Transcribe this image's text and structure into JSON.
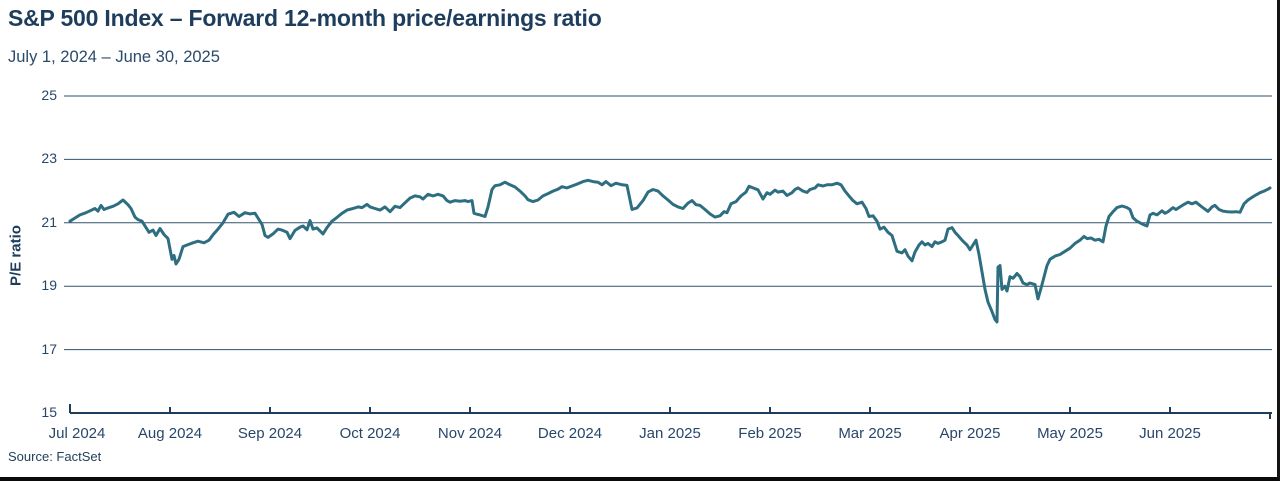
{
  "palette": {
    "line_teal": "#2e6e81",
    "text_navy": "#1e3d5c",
    "grid_navy": "#33526f",
    "axis_navy": "#1e3d5c"
  },
  "chart_data": {
    "type": "line",
    "title": "S&P 500 Index – Forward 12-month price/earnings ratio",
    "subtitle": "July 1, 2024 – June 30, 2025",
    "ylabel": "P/E ratio",
    "source": "Source: FactSet",
    "ylim": [
      15,
      25
    ],
    "y_ticks": [
      15,
      17,
      19,
      21,
      23,
      25
    ],
    "x_tick_labels": [
      "Jul 2024",
      "Aug 2024",
      "Sep 2024",
      "Oct 2024",
      "Nov 2024",
      "Dec 2024",
      "Jan 2025",
      "Feb 2025",
      "Mar 2025",
      "Apr 2025",
      "May 2025",
      "Jun 2025"
    ],
    "x_unit": "months since 2024-07-01 (0 = Jul 1 2024, 12 = Jun 30 2025)",
    "grid": "horizontal gridlines only",
    "legend": "none",
    "series": [
      {
        "name": "S&P 500 forward 12-month P/E ratio",
        "color": "#2e6e81",
        "points": [
          [
            0.0,
            21.05
          ],
          [
            0.05,
            21.15
          ],
          [
            0.1,
            21.25
          ],
          [
            0.16,
            21.32
          ],
          [
            0.2,
            21.38
          ],
          [
            0.25,
            21.45
          ],
          [
            0.28,
            21.37
          ],
          [
            0.31,
            21.55
          ],
          [
            0.34,
            21.42
          ],
          [
            0.38,
            21.47
          ],
          [
            0.43,
            21.52
          ],
          [
            0.48,
            21.6
          ],
          [
            0.53,
            21.72
          ],
          [
            0.58,
            21.57
          ],
          [
            0.61,
            21.45
          ],
          [
            0.65,
            21.18
          ],
          [
            0.68,
            21.1
          ],
          [
            0.72,
            21.05
          ],
          [
            0.76,
            20.85
          ],
          [
            0.79,
            20.7
          ],
          [
            0.83,
            20.77
          ],
          [
            0.86,
            20.6
          ],
          [
            0.9,
            20.82
          ],
          [
            0.94,
            20.63
          ],
          [
            0.98,
            20.5
          ],
          [
            1.02,
            19.85
          ],
          [
            1.04,
            19.97
          ],
          [
            1.06,
            19.7
          ],
          [
            1.09,
            19.85
          ],
          [
            1.13,
            20.25
          ],
          [
            1.17,
            20.3
          ],
          [
            1.23,
            20.37
          ],
          [
            1.28,
            20.42
          ],
          [
            1.34,
            20.37
          ],
          [
            1.39,
            20.45
          ],
          [
            1.43,
            20.62
          ],
          [
            1.48,
            20.8
          ],
          [
            1.53,
            21.0
          ],
          [
            1.58,
            21.27
          ],
          [
            1.64,
            21.33
          ],
          [
            1.69,
            21.2
          ],
          [
            1.75,
            21.32
          ],
          [
            1.8,
            21.28
          ],
          [
            1.85,
            21.3
          ],
          [
            1.88,
            21.15
          ],
          [
            1.92,
            20.95
          ],
          [
            1.95,
            20.6
          ],
          [
            1.98,
            20.54
          ],
          [
            2.03,
            20.65
          ],
          [
            2.08,
            20.8
          ],
          [
            2.12,
            20.77
          ],
          [
            2.17,
            20.7
          ],
          [
            2.2,
            20.5
          ],
          [
            2.25,
            20.76
          ],
          [
            2.3,
            20.86
          ],
          [
            2.33,
            20.9
          ],
          [
            2.37,
            20.78
          ],
          [
            2.4,
            21.07
          ],
          [
            2.43,
            20.8
          ],
          [
            2.47,
            20.84
          ],
          [
            2.53,
            20.65
          ],
          [
            2.57,
            20.85
          ],
          [
            2.62,
            21.05
          ],
          [
            2.67,
            21.17
          ],
          [
            2.72,
            21.3
          ],
          [
            2.77,
            21.4
          ],
          [
            2.83,
            21.45
          ],
          [
            2.88,
            21.5
          ],
          [
            2.92,
            21.48
          ],
          [
            2.97,
            21.58
          ],
          [
            3.0,
            21.5
          ],
          [
            3.05,
            21.45
          ],
          [
            3.1,
            21.4
          ],
          [
            3.15,
            21.5
          ],
          [
            3.2,
            21.35
          ],
          [
            3.25,
            21.52
          ],
          [
            3.3,
            21.48
          ],
          [
            3.35,
            21.63
          ],
          [
            3.4,
            21.78
          ],
          [
            3.45,
            21.85
          ],
          [
            3.5,
            21.82
          ],
          [
            3.53,
            21.75
          ],
          [
            3.58,
            21.9
          ],
          [
            3.63,
            21.85
          ],
          [
            3.68,
            21.9
          ],
          [
            3.73,
            21.85
          ],
          [
            3.77,
            21.7
          ],
          [
            3.8,
            21.65
          ],
          [
            3.85,
            21.7
          ],
          [
            3.9,
            21.68
          ],
          [
            3.95,
            21.7
          ],
          [
            3.98,
            21.67
          ],
          [
            4.02,
            21.7
          ],
          [
            4.04,
            21.3
          ],
          [
            4.07,
            21.27
          ],
          [
            4.1,
            21.25
          ],
          [
            4.15,
            21.2
          ],
          [
            4.18,
            21.5
          ],
          [
            4.22,
            22.05
          ],
          [
            4.25,
            22.17
          ],
          [
            4.3,
            22.2
          ],
          [
            4.35,
            22.28
          ],
          [
            4.4,
            22.2
          ],
          [
            4.45,
            22.13
          ],
          [
            4.5,
            22.0
          ],
          [
            4.55,
            21.85
          ],
          [
            4.58,
            21.73
          ],
          [
            4.63,
            21.67
          ],
          [
            4.68,
            21.72
          ],
          [
            4.73,
            21.85
          ],
          [
            4.78,
            21.92
          ],
          [
            4.83,
            22.0
          ],
          [
            4.88,
            22.06
          ],
          [
            4.92,
            22.14
          ],
          [
            4.97,
            22.1
          ],
          [
            5.02,
            22.16
          ],
          [
            5.07,
            22.22
          ],
          [
            5.13,
            22.3
          ],
          [
            5.18,
            22.34
          ],
          [
            5.23,
            22.3
          ],
          [
            5.28,
            22.28
          ],
          [
            5.32,
            22.2
          ],
          [
            5.36,
            22.3
          ],
          [
            5.41,
            22.17
          ],
          [
            5.46,
            22.25
          ],
          [
            5.52,
            22.2
          ],
          [
            5.57,
            22.18
          ],
          [
            5.62,
            21.42
          ],
          [
            5.67,
            21.47
          ],
          [
            5.73,
            21.7
          ],
          [
            5.78,
            21.97
          ],
          [
            5.83,
            22.05
          ],
          [
            5.88,
            22.0
          ],
          [
            5.93,
            21.85
          ],
          [
            5.98,
            21.72
          ],
          [
            6.03,
            21.58
          ],
          [
            6.08,
            21.5
          ],
          [
            6.13,
            21.45
          ],
          [
            6.18,
            21.62
          ],
          [
            6.22,
            21.7
          ],
          [
            6.26,
            21.57
          ],
          [
            6.3,
            21.55
          ],
          [
            6.35,
            21.42
          ],
          [
            6.4,
            21.28
          ],
          [
            6.45,
            21.18
          ],
          [
            6.5,
            21.22
          ],
          [
            6.54,
            21.35
          ],
          [
            6.57,
            21.32
          ],
          [
            6.61,
            21.6
          ],
          [
            6.66,
            21.67
          ],
          [
            6.71,
            21.85
          ],
          [
            6.76,
            21.97
          ],
          [
            6.79,
            22.15
          ],
          [
            6.83,
            22.1
          ],
          [
            6.88,
            22.04
          ],
          [
            6.93,
            21.75
          ],
          [
            6.97,
            21.95
          ],
          [
            7.0,
            21.9
          ],
          [
            7.05,
            22.03
          ],
          [
            7.08,
            21.97
          ],
          [
            7.13,
            22.0
          ],
          [
            7.17,
            21.86
          ],
          [
            7.22,
            21.95
          ],
          [
            7.25,
            22.05
          ],
          [
            7.28,
            22.1
          ],
          [
            7.33,
            22.0
          ],
          [
            7.37,
            21.96
          ],
          [
            7.4,
            22.05
          ],
          [
            7.45,
            22.1
          ],
          [
            7.48,
            22.2
          ],
          [
            7.53,
            22.16
          ],
          [
            7.57,
            22.2
          ],
          [
            7.62,
            22.2
          ],
          [
            7.67,
            22.25
          ],
          [
            7.71,
            22.2
          ],
          [
            7.75,
            22.0
          ],
          [
            7.79,
            21.85
          ],
          [
            7.83,
            21.7
          ],
          [
            7.87,
            21.6
          ],
          [
            7.92,
            21.65
          ],
          [
            7.96,
            21.45
          ],
          [
            7.99,
            21.2
          ],
          [
            8.03,
            21.22
          ],
          [
            8.07,
            21.05
          ],
          [
            8.1,
            20.8
          ],
          [
            8.14,
            20.86
          ],
          [
            8.18,
            20.7
          ],
          [
            8.22,
            20.6
          ],
          [
            8.27,
            20.1
          ],
          [
            8.32,
            20.05
          ],
          [
            8.35,
            20.15
          ],
          [
            8.38,
            19.95
          ],
          [
            8.42,
            19.8
          ],
          [
            8.45,
            20.08
          ],
          [
            8.49,
            20.3
          ],
          [
            8.52,
            20.4
          ],
          [
            8.55,
            20.3
          ],
          [
            8.58,
            20.35
          ],
          [
            8.62,
            20.25
          ],
          [
            8.65,
            20.4
          ],
          [
            8.68,
            20.35
          ],
          [
            8.72,
            20.4
          ],
          [
            8.75,
            20.45
          ],
          [
            8.78,
            20.8
          ],
          [
            8.82,
            20.85
          ],
          [
            8.85,
            20.7
          ],
          [
            8.88,
            20.6
          ],
          [
            8.93,
            20.42
          ],
          [
            8.97,
            20.3
          ],
          [
            9.0,
            20.15
          ],
          [
            9.03,
            20.3
          ],
          [
            9.06,
            20.45
          ],
          [
            9.09,
            20.0
          ],
          [
            9.12,
            19.45
          ],
          [
            9.15,
            18.9
          ],
          [
            9.18,
            18.5
          ],
          [
            9.22,
            18.2
          ],
          [
            9.25,
            17.95
          ],
          [
            9.27,
            17.87
          ],
          [
            9.28,
            19.6
          ],
          [
            9.3,
            19.65
          ],
          [
            9.32,
            18.9
          ],
          [
            9.35,
            19.0
          ],
          [
            9.37,
            18.85
          ],
          [
            9.4,
            19.3
          ],
          [
            9.43,
            19.25
          ],
          [
            9.47,
            19.4
          ],
          [
            9.5,
            19.3
          ],
          [
            9.53,
            19.1
          ],
          [
            9.57,
            19.05
          ],
          [
            9.6,
            19.1
          ],
          [
            9.65,
            19.05
          ],
          [
            9.68,
            18.6
          ],
          [
            9.72,
            19.05
          ],
          [
            9.77,
            19.65
          ],
          [
            9.8,
            19.85
          ],
          [
            9.85,
            19.95
          ],
          [
            9.9,
            20.0
          ],
          [
            9.95,
            20.1
          ],
          [
            10.0,
            20.2
          ],
          [
            10.05,
            20.35
          ],
          [
            10.1,
            20.45
          ],
          [
            10.14,
            20.57
          ],
          [
            10.17,
            20.5
          ],
          [
            10.21,
            20.52
          ],
          [
            10.25,
            20.45
          ],
          [
            10.29,
            20.48
          ],
          [
            10.33,
            20.4
          ],
          [
            10.36,
            20.9
          ],
          [
            10.39,
            21.2
          ],
          [
            10.43,
            21.35
          ],
          [
            10.47,
            21.48
          ],
          [
            10.52,
            21.53
          ],
          [
            10.57,
            21.48
          ],
          [
            10.6,
            21.42
          ],
          [
            10.63,
            21.16
          ],
          [
            10.67,
            21.05
          ],
          [
            10.7,
            21.0
          ],
          [
            10.73,
            20.95
          ],
          [
            10.77,
            20.9
          ],
          [
            10.8,
            21.25
          ],
          [
            10.83,
            21.3
          ],
          [
            10.87,
            21.25
          ],
          [
            10.92,
            21.38
          ],
          [
            10.95,
            21.3
          ],
          [
            10.98,
            21.35
          ],
          [
            11.03,
            21.48
          ],
          [
            11.06,
            21.42
          ],
          [
            11.1,
            21.5
          ],
          [
            11.14,
            21.58
          ],
          [
            11.18,
            21.65
          ],
          [
            11.22,
            21.6
          ],
          [
            11.26,
            21.65
          ],
          [
            11.3,
            21.55
          ],
          [
            11.34,
            21.45
          ],
          [
            11.38,
            21.36
          ],
          [
            11.42,
            21.5
          ],
          [
            11.45,
            21.55
          ],
          [
            11.49,
            21.42
          ],
          [
            11.53,
            21.37
          ],
          [
            11.57,
            21.35
          ],
          [
            11.62,
            21.34
          ],
          [
            11.66,
            21.35
          ],
          [
            11.7,
            21.33
          ],
          [
            11.74,
            21.6
          ],
          [
            11.78,
            21.72
          ],
          [
            11.82,
            21.8
          ],
          [
            11.86,
            21.88
          ],
          [
            11.9,
            21.95
          ],
          [
            11.94,
            22.0
          ],
          [
            11.98,
            22.06
          ],
          [
            12.0,
            22.1
          ]
        ]
      }
    ]
  }
}
